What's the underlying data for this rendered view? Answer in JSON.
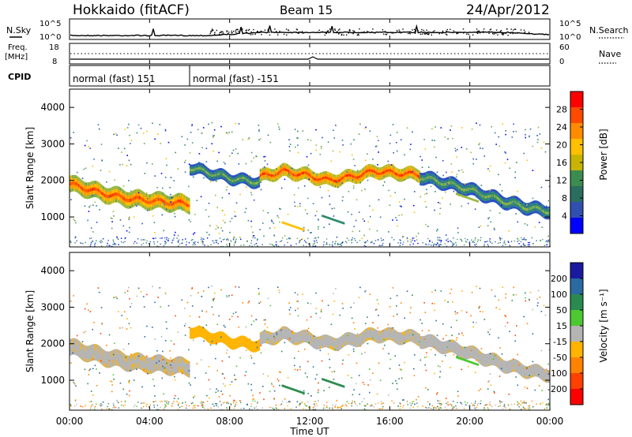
{
  "header": {
    "station": "Hokkaido (fitACF)",
    "beam": "Beam 15",
    "date": "24/Apr/2012"
  },
  "noise_panel": {
    "left_label": "N.Sky",
    "right_label": "N.Search",
    "tick_top_left": "10^5",
    "tick_bottom_left": "10^0",
    "tick_top_right": "10^5",
    "tick_bottom_right": "10^0"
  },
  "freq_panel": {
    "left_label_1": "Freq.",
    "left_label_2": "[MHz]",
    "right_label": "Nave",
    "tick_top_left": "18",
    "tick_bottom_left": "8",
    "tick_top_right": "60",
    "tick_bottom_right": "0"
  },
  "cpid_panel": {
    "label": "CPID",
    "segments": [
      {
        "label": "normal (fast) 151",
        "start_hour": 0,
        "end_hour": 6
      },
      {
        "label": "normal (fast) -151",
        "start_hour": 6,
        "end_hour": 24
      }
    ]
  },
  "power_panel": {
    "ylabel": "Slant Range [km]",
    "colorbar_label": "Power [dB]",
    "colorbar_ticks": [
      "28",
      "24",
      "20",
      "16",
      "12",
      "8",
      "4"
    ],
    "colorbar_colors": [
      "#ff0000",
      "#ff4a00",
      "#ff8c00",
      "#ffc000",
      "#c8b400",
      "#3c8c50",
      "#2a6e60",
      "#3050b0",
      "#0000ff"
    ]
  },
  "velocity_panel": {
    "ylabel": "Slant Range [km]",
    "colorbar_label": "Velocity [m s⁻¹]",
    "colorbar_ticks": [
      "200",
      "100",
      "50",
      "15",
      "-15",
      "-50",
      "-100",
      "-200"
    ],
    "colorbar_colors": [
      "#1a1aa0",
      "#2a6aa0",
      "#2a8a50",
      "#4cc830",
      "#b4b4b4",
      "#ffb400",
      "#ff8200",
      "#ff4000",
      "#ff0000"
    ]
  },
  "x_axis": {
    "label": "Time UT",
    "ticks": [
      "00:00",
      "04:00",
      "08:00",
      "12:00",
      "16:00",
      "20:00",
      "00:00"
    ]
  },
  "chart_data": {
    "type": "heatmap",
    "x_range_hours": [
      0,
      24
    ],
    "y_range_km": [
      180,
      4500
    ],
    "y_ticks": [
      1000,
      2000,
      3000,
      4000
    ],
    "echo_bands": [
      {
        "start_hour": 0.0,
        "end_hour": 6.0,
        "center_km": [
          1900,
          1750,
          1600,
          1500,
          1450,
          1400,
          1350
        ],
        "width_km": 450,
        "power_db": 26,
        "velocity": -10
      },
      {
        "start_hour": 6.0,
        "end_hour": 9.5,
        "center_km": [
          2350,
          2250,
          2150,
          2050,
          2000,
          1950
        ],
        "width_km": 300,
        "power_db": 14,
        "velocity": -30
      },
      {
        "start_hour": 9.5,
        "end_hour": 17.5,
        "center_km": [
          2100,
          2250,
          2150,
          2000,
          2100,
          2250,
          2200,
          2150
        ],
        "width_km": 350,
        "power_db": 27,
        "velocity": -8
      },
      {
        "start_hour": 17.5,
        "end_hour": 24.0,
        "center_km": [
          2100,
          1950,
          1800,
          1600,
          1400,
          1250,
          1150
        ],
        "width_km": 350,
        "power_db": 14,
        "velocity": -5
      }
    ],
    "patches": [
      {
        "hour": 10.6,
        "range_km": 820,
        "power_db": 20,
        "velocity": 40
      },
      {
        "hour": 12.6,
        "range_km": 1000,
        "power_db": 10,
        "velocity": 60
      },
      {
        "hour": 19.3,
        "range_km": 1600,
        "power_db": 16,
        "velocity": 30
      }
    ]
  }
}
